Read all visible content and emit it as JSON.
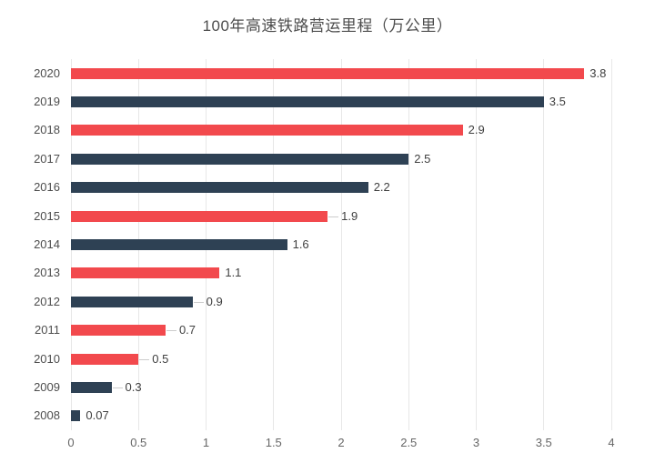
{
  "title": "100年高速铁路营运里程（万公里）",
  "colors": {
    "red": "#F2494D",
    "navy": "#2E4154",
    "grid": "#E7E7E7",
    "leader": "#CCCCCC",
    "year_label": "#4D4D4D",
    "value_label": "#404040",
    "tick_label": "#666666",
    "background": "#FFFFFF"
  },
  "chart_data": {
    "type": "bar",
    "orientation": "horizontal",
    "title": "100年高速铁路营运里程（万公里）",
    "categories": [
      "2020",
      "2019",
      "2018",
      "2017",
      "2016",
      "2015",
      "2014",
      "2013",
      "2012",
      "2011",
      "2010",
      "2009",
      "2008"
    ],
    "values": [
      3.8,
      3.5,
      2.9,
      2.5,
      2.2,
      1.9,
      1.6,
      1.1,
      0.9,
      0.7,
      0.5,
      0.3,
      0.07
    ],
    "value_labels": [
      "3.8",
      "3.5",
      "2.9",
      "2.5",
      "2.2",
      "1.9",
      "1.6",
      "1.1",
      "0.9",
      "0.7",
      "0.5",
      "0.3",
      "0.07"
    ],
    "bar_colors": [
      "red",
      "navy",
      "red",
      "navy",
      "navy",
      "red",
      "navy",
      "red",
      "navy",
      "red",
      "red",
      "navy",
      "navy"
    ],
    "leader_line": [
      false,
      false,
      false,
      false,
      false,
      true,
      false,
      false,
      true,
      true,
      true,
      true,
      false
    ],
    "xlabel": "",
    "ylabel": "",
    "xlim": [
      0,
      4
    ],
    "xticks": [
      0,
      0.5,
      1,
      1.5,
      2,
      2.5,
      3,
      3.5,
      4
    ],
    "xtick_labels": [
      "0",
      "0.5",
      "1",
      "1.5",
      "2",
      "2.5",
      "3",
      "3.5",
      "4"
    ],
    "grid": true,
    "legend": false
  }
}
